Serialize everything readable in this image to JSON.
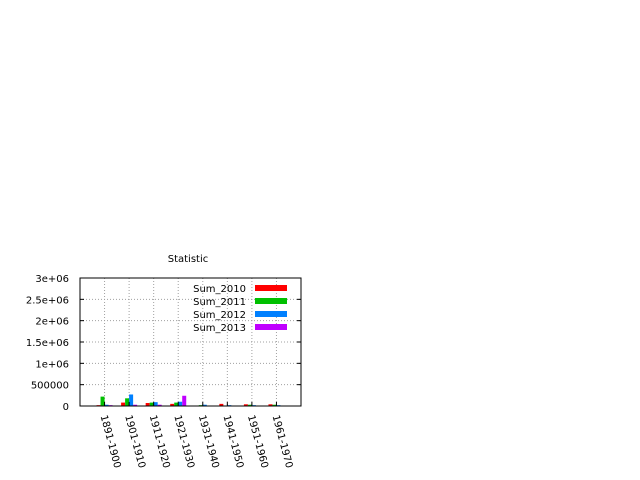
{
  "chart_data": {
    "type": "bar",
    "title": "Statistic",
    "xlabel": "",
    "ylabel": "",
    "categories": [
      "1891-1900",
      "1901-1910",
      "1911-1920",
      "1921-1930",
      "1931-1940",
      "1941-1950",
      "1951-1960",
      "1961-1970"
    ],
    "series": [
      {
        "name": "Sum_2010",
        "color": "#ff0000",
        "values": [
          20000,
          80000,
          70000,
          50000,
          10000,
          50000,
          40000,
          40000
        ]
      },
      {
        "name": "Sum_2011",
        "color": "#00c000",
        "values": [
          220000,
          180000,
          80000,
          80000,
          20000,
          10000,
          30000,
          30000
        ]
      },
      {
        "name": "Sum_2012",
        "color": "#0080ff",
        "values": [
          30000,
          270000,
          90000,
          100000,
          30000,
          20000,
          20000,
          20000
        ]
      },
      {
        "name": "Sum_2013",
        "color": "#c000ff",
        "values": [
          20000,
          30000,
          30000,
          240000,
          10000,
          10000,
          10000,
          10000
        ]
      }
    ],
    "ylim": [
      0,
      3000000
    ],
    "yticks": [
      "0",
      "500000",
      "1e+06",
      "1.5e+06",
      "2e+06",
      "2.5e+06",
      "3e+06"
    ],
    "ytick_values": [
      0,
      500000,
      1000000,
      1500000,
      2000000,
      2500000,
      3000000
    ],
    "grid": true,
    "legend_position": "top-right"
  }
}
